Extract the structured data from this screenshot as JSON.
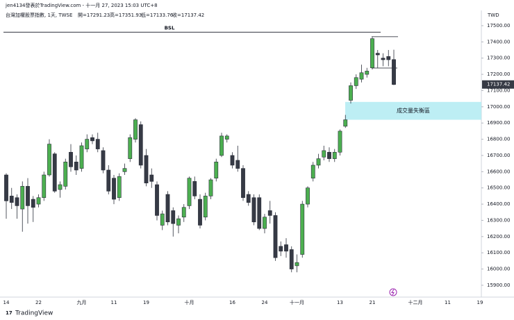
{
  "header": {
    "credit": "jen4134發表於TradingView.com - 十一月 27, 2023 15:03 UTC+8",
    "symbol": "台灣加權股票指數, 1天, TWSE",
    "open": "開=17291.23",
    "high": "高=17351.93",
    "low": "低=17133.76",
    "close": "收=17137.42"
  },
  "footer": {
    "brand": "TradingView"
  },
  "chart_data": {
    "type": "candlestick",
    "currency": "TWD",
    "up_color": "#4caf50",
    "down_color": "#363a45",
    "categories": [
      "14",
      null,
      null,
      null,
      null,
      null,
      "22",
      null,
      null,
      null,
      null,
      null,
      null,
      null,
      "九月",
      null,
      null,
      null,
      null,
      null,
      "11",
      null,
      null,
      null,
      null,
      null,
      "19",
      null,
      null,
      null,
      null,
      null,
      null,
      null,
      "十月",
      null,
      null,
      null,
      null,
      null,
      null,
      null,
      "16",
      null,
      null,
      null,
      null,
      null,
      "24",
      null,
      null,
      null,
      null,
      null,
      "十一月",
      null,
      null,
      null,
      null,
      null,
      null,
      null,
      "13",
      null,
      null,
      null,
      null,
      null,
      "21",
      null,
      null,
      null,
      null,
      null,
      null,
      null,
      "十二月",
      null,
      null,
      null,
      null,
      null,
      "11",
      null,
      null,
      null,
      null,
      null,
      "19"
    ],
    "open": [
      16580,
      16450,
      16440,
      16370,
      16510,
      16430,
      16400,
      16440,
      16580,
      16710,
      16490,
      16510,
      16720,
      16660,
      16620,
      16740,
      16810,
      16800,
      16730,
      16610,
      16560,
      16440,
      16600,
      16680,
      16800,
      16890,
      16700,
      16580,
      16520,
      16270,
      16460,
      16360,
      16270,
      16320,
      16390,
      16540,
      16430,
      16320,
      16450,
      16560,
      16700,
      16800,
      16700,
      16670,
      16620,
      16460,
      16440,
      16440,
      16250,
      16360,
      16330,
      16140,
      16150,
      16120,
      16020,
      16090,
      16400,
      16560,
      16640,
      16690,
      16720,
      16680,
      16720,
      16880,
      17040,
      17130,
      17170,
      17200,
      17240,
      17330,
      17300,
      17310,
      17291.23,
      null,
      null,
      null,
      null,
      null,
      null,
      null,
      null,
      null,
      null,
      null,
      null,
      null,
      null,
      null,
      null
    ],
    "high": [
      16590,
      16500,
      16460,
      16540,
      16560,
      16450,
      16460,
      16600,
      16800,
      16720,
      16540,
      16680,
      16770,
      16700,
      16780,
      16830,
      16830,
      16840,
      16750,
      16640,
      16580,
      16590,
      16650,
      16830,
      16930,
      16910,
      16740,
      16620,
      16540,
      16360,
      16480,
      16380,
      16330,
      16400,
      16570,
      16570,
      16460,
      16470,
      16560,
      16680,
      16840,
      16830,
      16720,
      16760,
      16640,
      16480,
      16460,
      16460,
      16340,
      16420,
      16350,
      16170,
      16190,
      16140,
      16090,
      16420,
      16510,
      16660,
      16710,
      16760,
      16750,
      16740,
      16860,
      16950,
      17150,
      17200,
      17260,
      17240,
      17430,
      17350,
      17330,
      17350,
      17351.93,
      null,
      null,
      null,
      null,
      null,
      null,
      null,
      null,
      null,
      null,
      null,
      null,
      null,
      null,
      null,
      null
    ],
    "low": [
      16310,
      16370,
      16310,
      16230,
      16280,
      16290,
      16380,
      16420,
      16570,
      16470,
      16440,
      16490,
      16600,
      16580,
      16600,
      16720,
      16770,
      16720,
      16590,
      16460,
      16400,
      16420,
      16580,
      16660,
      16780,
      16620,
      16510,
      16500,
      16300,
      16240,
      16270,
      16200,
      16220,
      16290,
      16370,
      16430,
      16250,
      16300,
      16430,
      16540,
      16690,
      16780,
      16620,
      16600,
      16420,
      16390,
      16270,
      16240,
      16220,
      16280,
      16050,
      16080,
      16070,
      15980,
      15980,
      16070,
      16380,
      16540,
      16620,
      16670,
      16660,
      16660,
      16700,
      16870,
      17020,
      17110,
      17150,
      17180,
      17230,
      17240,
      17250,
      17250,
      17133.76,
      null,
      null,
      null,
      null,
      null,
      null,
      null,
      null,
      null,
      null,
      null,
      null,
      null,
      null,
      null,
      null
    ],
    "close": [
      16420,
      16410,
      16390,
      16510,
      16390,
      16380,
      16440,
      16580,
      16770,
      16480,
      16520,
      16660,
      16630,
      16610,
      16760,
      16800,
      16790,
      16740,
      16610,
      16480,
      16430,
      16570,
      16620,
      16810,
      16920,
      16640,
      16530,
      16540,
      16330,
      16340,
      16290,
      16280,
      16310,
      16380,
      16560,
      16450,
      16270,
      16450,
      16550,
      16660,
      16820,
      16820,
      16640,
      16620,
      16440,
      16410,
      16290,
      16250,
      16320,
      16330,
      16070,
      16110,
      16110,
      16000,
      16040,
      16400,
      16500,
      16640,
      16680,
      16730,
      16680,
      16720,
      16850,
      16920,
      17130,
      17180,
      17210,
      17220,
      17420,
      17320,
      17290,
      17290,
      17137.42,
      null,
      null,
      null,
      null,
      null,
      null,
      null,
      null,
      null,
      null,
      null,
      null,
      null,
      null,
      null,
      null
    ],
    "ylim": [
      15827,
      17594
    ],
    "yticks": [
      {
        "value": 15900,
        "label": "15900.00"
      },
      {
        "value": 16000,
        "label": "16000.00"
      },
      {
        "value": 16100,
        "label": "16100.00"
      },
      {
        "value": 16200,
        "label": "16200.00"
      },
      {
        "value": 16300,
        "label": "16300.00"
      },
      {
        "value": 16400,
        "label": "16400.00"
      },
      {
        "value": 16500,
        "label": "16500.00"
      },
      {
        "value": 16600,
        "label": "16600.00"
      },
      {
        "value": 16700,
        "label": "16700.00"
      },
      {
        "value": 16800,
        "label": "16800.00"
      },
      {
        "value": 16900,
        "label": "16900.00"
      },
      {
        "value": 17000,
        "label": "17000.00"
      },
      {
        "value": 17100,
        "label": "17100.00"
      },
      {
        "value": 17200,
        "label": "17200.00"
      },
      {
        "value": 17300,
        "label": "17300.00"
      },
      {
        "value": 17400,
        "label": "17400.00"
      },
      {
        "value": 17500,
        "label": "17500.00"
      }
    ],
    "annotations": [
      {
        "label": "BSL",
        "level": 17460
      }
    ],
    "levels": [
      17432,
      17239
    ],
    "zone": {
      "label": "成交量失衡區",
      "range": [
        16920,
        17030
      ]
    }
  }
}
